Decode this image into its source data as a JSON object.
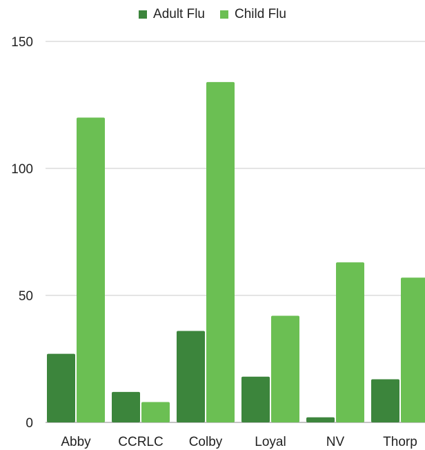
{
  "chart_data": {
    "type": "bar",
    "categories": [
      "Abby",
      "CCRLC",
      "Colby",
      "Loyal",
      "NV",
      "Thorp"
    ],
    "series": [
      {
        "name": "Adult Flu",
        "color": "#3c853c",
        "values": [
          27,
          12,
          36,
          18,
          2,
          17
        ]
      },
      {
        "name": "Child Flu",
        "color": "#6bbf53",
        "values": [
          120,
          8,
          134,
          42,
          63,
          57
        ]
      }
    ],
    "yticks": [
      "0",
      "50",
      "100",
      "150"
    ],
    "ylim": [
      0,
      150
    ],
    "grid": true,
    "legend_position": "top-center"
  }
}
